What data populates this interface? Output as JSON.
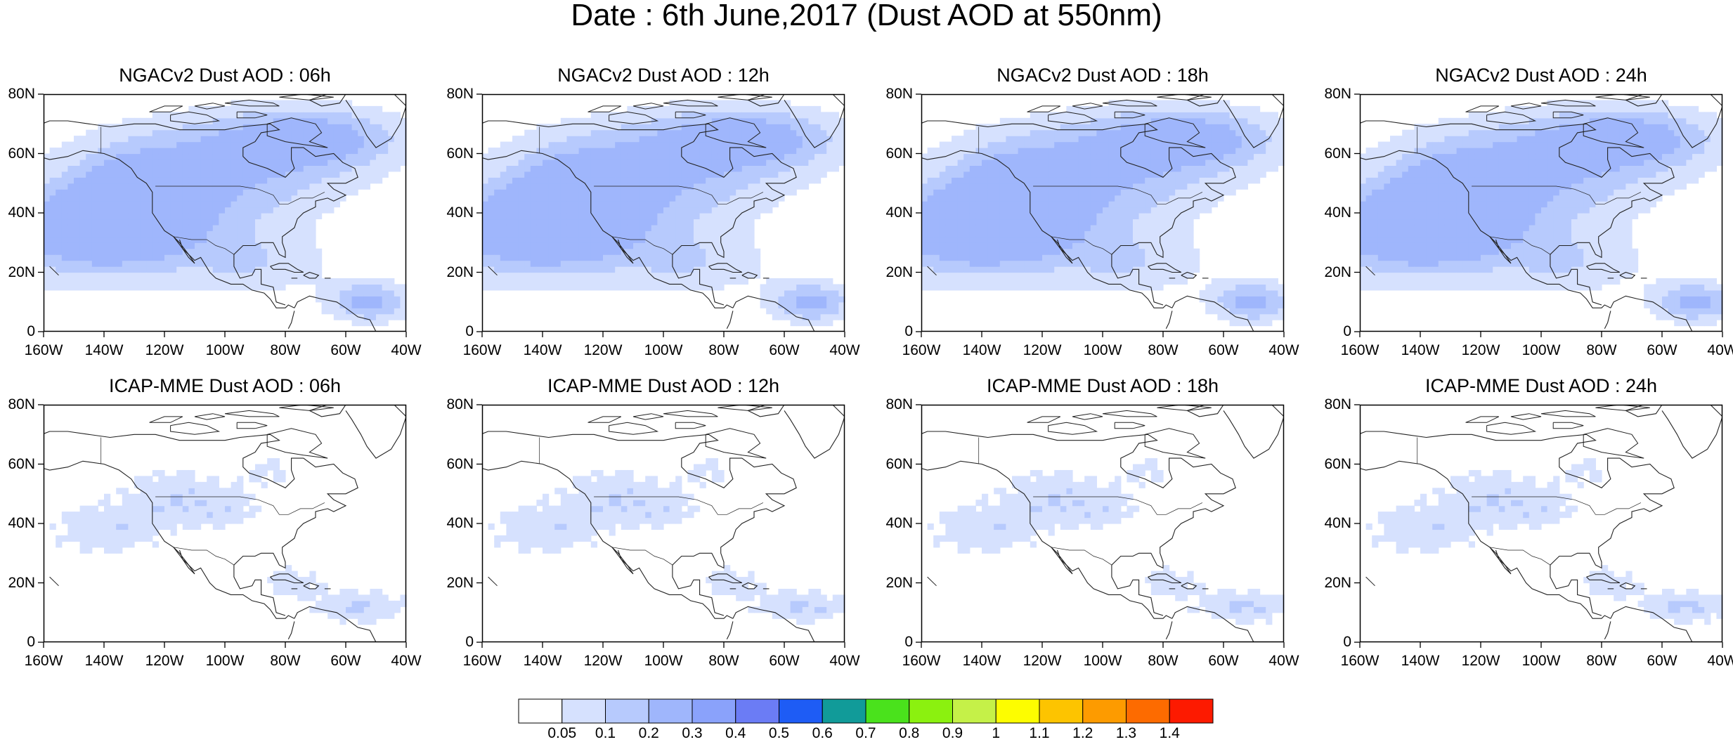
{
  "title": "Date : 6th June,2017 (Dust AOD at 550nm)",
  "panels": [
    {
      "id": "ngac-06",
      "title": "NGACv2 Dust AOD : 06h",
      "model": "ngac",
      "lead": 6
    },
    {
      "id": "ngac-12",
      "title": "NGACv2 Dust AOD : 12h",
      "model": "ngac",
      "lead": 12
    },
    {
      "id": "ngac-18",
      "title": "NGACv2 Dust AOD : 18h",
      "model": "ngac",
      "lead": 18
    },
    {
      "id": "ngac-24",
      "title": "NGACv2 Dust AOD : 24h",
      "model": "ngac",
      "lead": 24
    },
    {
      "id": "icap-06",
      "title": "ICAP-MME Dust AOD : 06h",
      "model": "icap",
      "lead": 6
    },
    {
      "id": "icap-12",
      "title": "ICAP-MME Dust AOD : 12h",
      "model": "icap",
      "lead": 12
    },
    {
      "id": "icap-18",
      "title": "ICAP-MME Dust AOD : 18h",
      "model": "icap",
      "lead": 18
    },
    {
      "id": "icap-24",
      "title": "ICAP-MME Dust AOD : 24h",
      "model": "icap",
      "lead": 24
    }
  ],
  "lat_ticks": [
    "80N",
    "60N",
    "40N",
    "20N",
    "0"
  ],
  "lon_ticks": [
    "160W",
    "140W",
    "120W",
    "100W",
    "80W",
    "60W",
    "40W"
  ],
  "extent": {
    "lon": [
      -160,
      -40
    ],
    "lat": [
      0,
      80
    ]
  },
  "colorbar": {
    "labels": [
      "0.05",
      "0.1",
      "0.2",
      "0.3",
      "0.4",
      "0.5",
      "0.6",
      "0.7",
      "0.8",
      "0.9",
      "1",
      "1.1",
      "1.2",
      "1.3",
      "1.4"
    ],
    "colors": [
      "#ffffff",
      "#d6e1fe",
      "#b7cafd",
      "#9fb6fc",
      "#8aa2fb",
      "#6b7cf5",
      "#1e5cf5",
      "#119b99",
      "#4ae21c",
      "#8bf10f",
      "#c5f148",
      "#fdfd00",
      "#fdc400",
      "#fd9b00",
      "#fd6b00",
      "#fd1a00"
    ]
  },
  "colors": {
    "coast": "#222222",
    "frame": "#000000",
    "level1": "#d6e1fe",
    "level2": "#b7cafd",
    "level3": "#9fb6fc"
  }
}
